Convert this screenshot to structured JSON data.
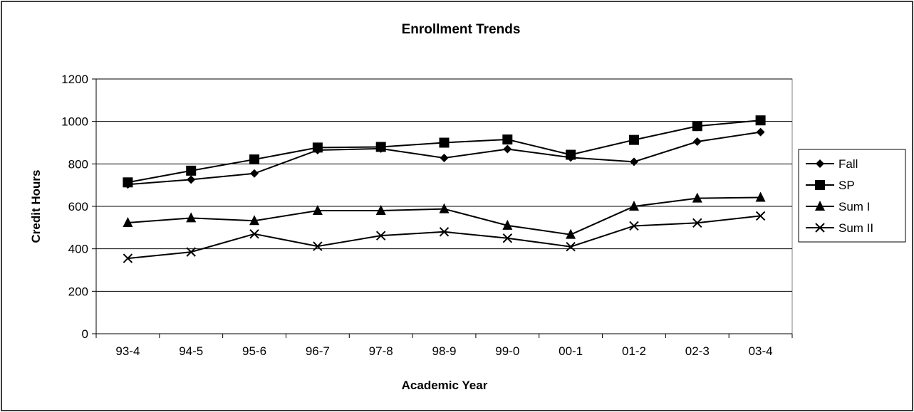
{
  "chart_data": {
    "type": "line",
    "title": "Enrollment Trends",
    "xlabel": "Academic Year",
    "ylabel": "Credit Hours",
    "categories": [
      "93-4",
      "94-5",
      "95-6",
      "96-7",
      "97-8",
      "98-9",
      "99-0",
      "00-1",
      "01-2",
      "02-3",
      "03-4"
    ],
    "ylim": [
      0,
      1200
    ],
    "yticks": [
      0,
      200,
      400,
      600,
      800,
      1000,
      1200
    ],
    "grid": "horizontal",
    "legend_position": "right",
    "series": [
      {
        "name": "Fall",
        "marker": "diamond",
        "values": [
          703,
          726,
          755,
          865,
          872,
          828,
          870,
          830,
          810,
          905,
          950
        ]
      },
      {
        "name": "SP",
        "marker": "square",
        "values": [
          713,
          768,
          821,
          877,
          880,
          900,
          915,
          843,
          913,
          978,
          1005
        ]
      },
      {
        "name": "Sum I",
        "marker": "triangle",
        "values": [
          523,
          545,
          532,
          580,
          580,
          588,
          510,
          467,
          600,
          638,
          642
        ]
      },
      {
        "name": "Sum II",
        "marker": "x",
        "values": [
          355,
          385,
          470,
          412,
          462,
          480,
          450,
          410,
          508,
          522,
          555
        ]
      }
    ],
    "colors": {
      "line": "#000000",
      "grid": "#000000",
      "background": "#ffffff"
    }
  }
}
